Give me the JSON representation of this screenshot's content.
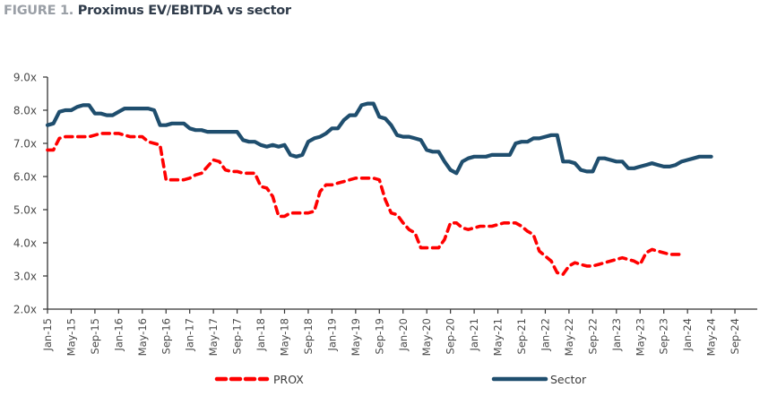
{
  "figure": {
    "label": "FIGURE 1.",
    "title": "Proximus EV/EBITDA vs sector"
  },
  "colors": {
    "prox": "#ff0000",
    "sector": "#1f4e6e",
    "axis": "#333333",
    "title_label": "#9a9fa6",
    "title_text": "#2f3b4a"
  },
  "chart_data": {
    "type": "line",
    "title": "Proximus EV/EBITDA vs sector",
    "xlabel": "",
    "ylabel": "",
    "ylim": [
      2.0,
      9.0
    ],
    "yticks": [
      2.0,
      3.0,
      4.0,
      5.0,
      6.0,
      7.0,
      8.0,
      9.0
    ],
    "ytick_labels": [
      "2.0x",
      "3.0x",
      "4.0x",
      "5.0x",
      "6.0x",
      "7.0x",
      "8.0x",
      "9.0x"
    ],
    "xtick_labels": [
      "Jan-15",
      "May-15",
      "Sep-15",
      "Jan-16",
      "May-16",
      "Sep-16",
      "Jan-17",
      "May-17",
      "Sep-17",
      "Jan-18",
      "May-18",
      "Sep-18",
      "Jan-19",
      "May-19",
      "Sep-19",
      "Jan-20",
      "May-20",
      "Sep-20",
      "Jan-21",
      "May-21",
      "Sep-21",
      "Jan-22",
      "May-22",
      "Sep-22",
      "Jan-23",
      "May-23",
      "Sep-23",
      "Jan-24",
      "May-24",
      "Sep-24"
    ],
    "x_start": "Jan-15",
    "x_frequency": "monthly",
    "grid": false,
    "legend": {
      "placement": "bottom",
      "entries": [
        "PROX",
        "Sector"
      ]
    },
    "series": [
      {
        "name": "PROX",
        "style": "dashed",
        "values": [
          6.8,
          6.8,
          7.15,
          7.2,
          7.2,
          7.2,
          7.2,
          7.2,
          7.25,
          7.3,
          7.3,
          7.3,
          7.3,
          7.25,
          7.2,
          7.2,
          7.2,
          7.05,
          7.0,
          6.95,
          5.9,
          5.9,
          5.9,
          5.9,
          5.95,
          6.05,
          6.1,
          6.3,
          6.5,
          6.45,
          6.2,
          6.15,
          6.15,
          6.1,
          6.1,
          6.1,
          5.7,
          5.65,
          5.4,
          4.8,
          4.8,
          4.9,
          4.9,
          4.9,
          4.9,
          4.95,
          5.55,
          5.75,
          5.75,
          5.8,
          5.85,
          5.9,
          5.95,
          5.95,
          5.95,
          5.95,
          5.9,
          5.3,
          4.9,
          4.85,
          4.6,
          4.4,
          4.3,
          3.85,
          3.85,
          3.85,
          3.85,
          4.1,
          4.6,
          4.6,
          4.45,
          4.4,
          4.45,
          4.5,
          4.5,
          4.5,
          4.55,
          4.6,
          4.6,
          4.6,
          4.5,
          4.35,
          4.25,
          3.75,
          3.6,
          3.45,
          3.1,
          3.05,
          3.3,
          3.4,
          3.35,
          3.3,
          3.3,
          3.35,
          3.4,
          3.45,
          3.5,
          3.55,
          3.5,
          3.45,
          3.35,
          3.7,
          3.8,
          3.75,
          3.7,
          3.65,
          3.65,
          3.65
        ]
      },
      {
        "name": "Sector",
        "style": "solid",
        "values": [
          7.55,
          7.6,
          7.95,
          8.0,
          8.0,
          8.1,
          8.15,
          8.15,
          7.9,
          7.9,
          7.85,
          7.85,
          7.95,
          8.05,
          8.05,
          8.05,
          8.05,
          8.05,
          8.0,
          7.55,
          7.55,
          7.6,
          7.6,
          7.6,
          7.45,
          7.4,
          7.4,
          7.35,
          7.35,
          7.35,
          7.35,
          7.35,
          7.35,
          7.1,
          7.05,
          7.05,
          6.95,
          6.9,
          6.95,
          6.9,
          6.95,
          6.65,
          6.6,
          6.65,
          7.05,
          7.15,
          7.2,
          7.3,
          7.45,
          7.45,
          7.7,
          7.85,
          7.85,
          8.15,
          8.2,
          8.2,
          7.8,
          7.75,
          7.55,
          7.25,
          7.2,
          7.2,
          7.15,
          7.1,
          6.8,
          6.75,
          6.75,
          6.45,
          6.2,
          6.1,
          6.45,
          6.55,
          6.6,
          6.6,
          6.6,
          6.65,
          6.65,
          6.65,
          6.65,
          7.0,
          7.05,
          7.05,
          7.15,
          7.15,
          7.2,
          7.25,
          7.25,
          6.45,
          6.45,
          6.4,
          6.2,
          6.15,
          6.15,
          6.55,
          6.55,
          6.5,
          6.45,
          6.45,
          6.25,
          6.25,
          6.3,
          6.35,
          6.4,
          6.35,
          6.3,
          6.3,
          6.35,
          6.45,
          6.5,
          6.55,
          6.6,
          6.6,
          6.6
        ]
      }
    ]
  }
}
